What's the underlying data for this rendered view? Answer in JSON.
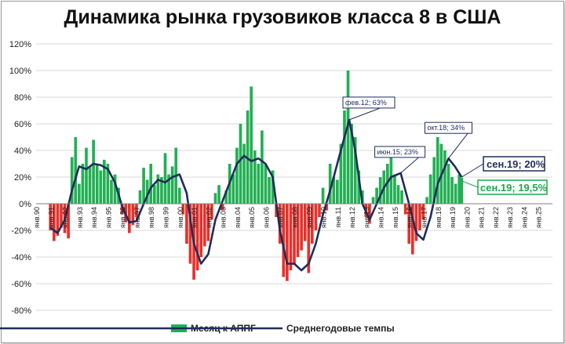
{
  "chart_data": {
    "type": "bar",
    "title": "Динамика рынка грузовиков класса 8 в США",
    "ylim": [
      -80,
      120
    ],
    "yticks": [
      "-80%",
      "-60%",
      "-40%",
      "-20%",
      "0%",
      "20%",
      "40%",
      "60%",
      "80%",
      "100%",
      "120%"
    ],
    "ytick_values": [
      -80,
      -60,
      -40,
      -20,
      0,
      20,
      40,
      60,
      80,
      100,
      120
    ],
    "x_years": [
      "янв.90",
      "янв.91",
      "янв.92",
      "янв.93",
      "янв.94",
      "янв.95",
      "янв.96",
      "янв.97",
      "янв.98",
      "янв.99",
      "янв.00",
      "янв.01",
      "янв.02",
      "янв.03",
      "янв.04",
      "янв.05",
      "янв.06",
      "янв.07",
      "янв.08",
      "янв.09",
      "янв.10",
      "янв.11",
      "янв.12",
      "янв.13",
      "янв.14",
      "янв.15",
      "янв.16",
      "янв.17",
      "янв.18",
      "янв.19",
      "янв.20",
      "янв.21",
      "янв.22",
      "янв.23",
      "янв.24",
      "янв.25"
    ],
    "x_range_years": [
      1990,
      2026
    ],
    "colors": {
      "positive": "#21b053",
      "negative": "#e8302a",
      "line": "#1f2d5a",
      "green_label": "#1fa84c"
    },
    "series": [
      {
        "name": "Месяц к АППГ",
        "kind": "bar",
        "note": "monthly y/y % change, sampled by quarter-year (t = fractional year)",
        "points": [
          {
            "t": 1991.0,
            "v": -20
          },
          {
            "t": 1991.25,
            "v": -28
          },
          {
            "t": 1991.5,
            "v": -24
          },
          {
            "t": 1991.75,
            "v": -18
          },
          {
            "t": 1992.0,
            "v": -22
          },
          {
            "t": 1992.25,
            "v": -26
          },
          {
            "t": 1992.5,
            "v": 35
          },
          {
            "t": 1992.75,
            "v": 50
          },
          {
            "t": 1993.0,
            "v": 15
          },
          {
            "t": 1993.25,
            "v": 30
          },
          {
            "t": 1993.5,
            "v": 42
          },
          {
            "t": 1993.75,
            "v": 28
          },
          {
            "t": 1994.0,
            "v": 48
          },
          {
            "t": 1994.25,
            "v": 30
          },
          {
            "t": 1994.5,
            "v": 25
          },
          {
            "t": 1994.75,
            "v": 33
          },
          {
            "t": 1995.0,
            "v": 30
          },
          {
            "t": 1995.25,
            "v": 18
          },
          {
            "t": 1995.5,
            "v": 22
          },
          {
            "t": 1995.75,
            "v": 12
          },
          {
            "t": 1996.0,
            "v": -8
          },
          {
            "t": 1996.25,
            "v": -14
          },
          {
            "t": 1996.5,
            "v": -22
          },
          {
            "t": 1996.75,
            "v": -16
          },
          {
            "t": 1997.0,
            "v": -10
          },
          {
            "t": 1997.25,
            "v": 10
          },
          {
            "t": 1997.5,
            "v": 27
          },
          {
            "t": 1997.75,
            "v": 18
          },
          {
            "t": 1998.0,
            "v": 30
          },
          {
            "t": 1998.25,
            "v": 14
          },
          {
            "t": 1998.5,
            "v": 22
          },
          {
            "t": 1998.75,
            "v": 20
          },
          {
            "t": 1999.0,
            "v": 38
          },
          {
            "t": 1999.25,
            "v": 22
          },
          {
            "t": 1999.5,
            "v": 28
          },
          {
            "t": 1999.75,
            "v": 42
          },
          {
            "t": 2000.0,
            "v": 12
          },
          {
            "t": 2000.25,
            "v": -8
          },
          {
            "t": 2000.5,
            "v": -30
          },
          {
            "t": 2000.75,
            "v": -45
          },
          {
            "t": 2001.0,
            "v": -57
          },
          {
            "t": 2001.25,
            "v": -50
          },
          {
            "t": 2001.5,
            "v": -40
          },
          {
            "t": 2001.75,
            "v": -32
          },
          {
            "t": 2002.0,
            "v": -28
          },
          {
            "t": 2002.25,
            "v": -12
          },
          {
            "t": 2002.5,
            "v": 8
          },
          {
            "t": 2002.75,
            "v": 14
          },
          {
            "t": 2003.0,
            "v": -5
          },
          {
            "t": 2003.25,
            "v": 10
          },
          {
            "t": 2003.5,
            "v": 30
          },
          {
            "t": 2003.75,
            "v": 22
          },
          {
            "t": 2004.0,
            "v": 42
          },
          {
            "t": 2004.25,
            "v": 60
          },
          {
            "t": 2004.5,
            "v": 45
          },
          {
            "t": 2004.75,
            "v": 70
          },
          {
            "t": 2005.0,
            "v": 88
          },
          {
            "t": 2005.25,
            "v": 40
          },
          {
            "t": 2005.5,
            "v": 30
          },
          {
            "t": 2005.75,
            "v": 55
          },
          {
            "t": 2006.0,
            "v": 30
          },
          {
            "t": 2006.25,
            "v": 20
          },
          {
            "t": 2006.5,
            "v": 25
          },
          {
            "t": 2006.75,
            "v": -10
          },
          {
            "t": 2007.0,
            "v": -30
          },
          {
            "t": 2007.25,
            "v": -55
          },
          {
            "t": 2007.5,
            "v": -58
          },
          {
            "t": 2007.75,
            "v": -50
          },
          {
            "t": 2008.0,
            "v": -46
          },
          {
            "t": 2008.25,
            "v": -40
          },
          {
            "t": 2008.5,
            "v": -35
          },
          {
            "t": 2008.75,
            "v": -28
          },
          {
            "t": 2009.0,
            "v": -52
          },
          {
            "t": 2009.25,
            "v": -30
          },
          {
            "t": 2009.5,
            "v": -20
          },
          {
            "t": 2009.75,
            "v": -10
          },
          {
            "t": 2010.0,
            "v": 12
          },
          {
            "t": 2010.25,
            "v": -5
          },
          {
            "t": 2010.5,
            "v": 30
          },
          {
            "t": 2010.75,
            "v": 20
          },
          {
            "t": 2011.0,
            "v": 18
          },
          {
            "t": 2011.25,
            "v": 45
          },
          {
            "t": 2011.5,
            "v": 70
          },
          {
            "t": 2011.75,
            "v": 100
          },
          {
            "t": 2012.0,
            "v": 60
          },
          {
            "t": 2012.25,
            "v": 50
          },
          {
            "t": 2012.5,
            "v": 25
          },
          {
            "t": 2012.75,
            "v": 10
          },
          {
            "t": 2013.0,
            "v": -10
          },
          {
            "t": 2013.25,
            "v": -15
          },
          {
            "t": 2013.5,
            "v": 5
          },
          {
            "t": 2013.75,
            "v": 12
          },
          {
            "t": 2014.0,
            "v": 20
          },
          {
            "t": 2014.25,
            "v": 25
          },
          {
            "t": 2014.5,
            "v": 30
          },
          {
            "t": 2014.75,
            "v": 35
          },
          {
            "t": 2015.0,
            "v": 22
          },
          {
            "t": 2015.25,
            "v": 14
          },
          {
            "t": 2015.5,
            "v": 10
          },
          {
            "t": 2015.75,
            "v": -8
          },
          {
            "t": 2016.0,
            "v": -30
          },
          {
            "t": 2016.25,
            "v": -38
          },
          {
            "t": 2016.5,
            "v": -28
          },
          {
            "t": 2016.75,
            "v": -20
          },
          {
            "t": 2017.0,
            "v": -12
          },
          {
            "t": 2017.25,
            "v": 5
          },
          {
            "t": 2017.5,
            "v": 22
          },
          {
            "t": 2017.75,
            "v": 35
          },
          {
            "t": 2018.0,
            "v": 50
          },
          {
            "t": 2018.25,
            "v": 45
          },
          {
            "t": 2018.5,
            "v": 40
          },
          {
            "t": 2018.75,
            "v": 30
          },
          {
            "t": 2019.0,
            "v": 20
          },
          {
            "t": 2019.25,
            "v": 15
          },
          {
            "t": 2019.5,
            "v": 22
          },
          {
            "t": 2019.67,
            "v": 19.5
          }
        ]
      },
      {
        "name": "Среднегодовые темпы",
        "kind": "line",
        "points": [
          {
            "t": 1991.0,
            "v": -18
          },
          {
            "t": 1991.5,
            "v": -22
          },
          {
            "t": 1992.0,
            "v": -12
          },
          {
            "t": 1992.5,
            "v": 10
          },
          {
            "t": 1993.0,
            "v": 28
          },
          {
            "t": 1993.5,
            "v": 26
          },
          {
            "t": 1994.0,
            "v": 30
          },
          {
            "t": 1994.5,
            "v": 29
          },
          {
            "t": 1995.0,
            "v": 26
          },
          {
            "t": 1995.5,
            "v": 16
          },
          {
            "t": 1996.0,
            "v": -2
          },
          {
            "t": 1996.5,
            "v": -14
          },
          {
            "t": 1997.0,
            "v": -13
          },
          {
            "t": 1997.5,
            "v": 0
          },
          {
            "t": 1998.0,
            "v": 12
          },
          {
            "t": 1998.5,
            "v": 18
          },
          {
            "t": 1999.0,
            "v": 16
          },
          {
            "t": 1999.5,
            "v": 20
          },
          {
            "t": 2000.0,
            "v": 22
          },
          {
            "t": 2000.5,
            "v": 8
          },
          {
            "t": 2001.0,
            "v": -30
          },
          {
            "t": 2001.5,
            "v": -45
          },
          {
            "t": 2002.0,
            "v": -38
          },
          {
            "t": 2002.5,
            "v": -12
          },
          {
            "t": 2003.0,
            "v": 2
          },
          {
            "t": 2003.5,
            "v": 16
          },
          {
            "t": 2004.0,
            "v": 30
          },
          {
            "t": 2004.5,
            "v": 36
          },
          {
            "t": 2005.0,
            "v": 32
          },
          {
            "t": 2005.5,
            "v": 34
          },
          {
            "t": 2006.0,
            "v": 30
          },
          {
            "t": 2006.5,
            "v": 20
          },
          {
            "t": 2007.0,
            "v": -20
          },
          {
            "t": 2007.5,
            "v": -45
          },
          {
            "t": 2008.0,
            "v": -45
          },
          {
            "t": 2008.5,
            "v": -50
          },
          {
            "t": 2009.0,
            "v": -45
          },
          {
            "t": 2009.5,
            "v": -30
          },
          {
            "t": 2010.0,
            "v": -8
          },
          {
            "t": 2010.5,
            "v": 10
          },
          {
            "t": 2011.0,
            "v": 30
          },
          {
            "t": 2011.5,
            "v": 50
          },
          {
            "t": 2011.83,
            "v": 63
          },
          {
            "t": 2012.25,
            "v": 40
          },
          {
            "t": 2012.75,
            "v": 0
          },
          {
            "t": 2013.25,
            "v": -12
          },
          {
            "t": 2013.75,
            "v": 0
          },
          {
            "t": 2014.25,
            "v": 12
          },
          {
            "t": 2014.75,
            "v": 20
          },
          {
            "t": 2015.42,
            "v": 23
          },
          {
            "t": 2016.0,
            "v": 0
          },
          {
            "t": 2016.5,
            "v": -22
          },
          {
            "t": 2017.0,
            "v": -27
          },
          {
            "t": 2017.5,
            "v": -10
          },
          {
            "t": 2018.0,
            "v": 15
          },
          {
            "t": 2018.75,
            "v": 34
          },
          {
            "t": 2019.2,
            "v": 28
          },
          {
            "t": 2019.67,
            "v": 20
          }
        ]
      }
    ],
    "annotations": {
      "feb12": "фев.12; 63%",
      "jun15": "июн.15; 23%",
      "oct18": "окт.18; 34%",
      "sep19_line": "сен.19; 20%",
      "sep19_bar": "сен.19; 19,5%"
    },
    "annotation_points": {
      "feb12": {
        "t": 2011.83,
        "v": 63
      },
      "jun15": {
        "t": 2015.42,
        "v": 23
      },
      "oct18": {
        "t": 2018.75,
        "v": 34
      },
      "sep19_line": {
        "t": 2019.67,
        "v": 20
      },
      "sep19_bar": {
        "t": 2019.67,
        "v": 19.5
      }
    },
    "legend": {
      "position": "bottom",
      "items": [
        {
          "label": "Месяц к АППГ",
          "kind": "bar"
        },
        {
          "label": "Среднегодовые темпы",
          "kind": "line"
        }
      ]
    }
  }
}
